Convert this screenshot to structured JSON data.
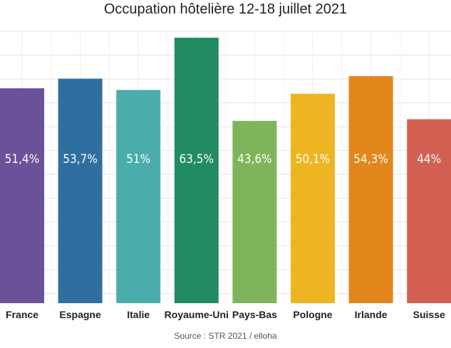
{
  "chart_data": {
    "type": "bar",
    "title": "Occupation hôtelière 12-18 juillet 2021",
    "source": "Source : STR 2021 / elloha",
    "categories": [
      "France",
      "Espagne",
      "Italie",
      "Royaume-Uni",
      "Pays-Bas",
      "Pologne",
      "Irlande",
      "Suisse"
    ],
    "values": [
      51.4,
      53.7,
      51,
      63.5,
      43.6,
      50.1,
      54.3,
      44
    ],
    "value_labels": [
      "51,4%",
      "53,7%",
      "51%",
      "63,5%",
      "43,6%",
      "50,1%",
      "54,3%",
      "44%"
    ],
    "colors": [
      "#6B5199",
      "#2F6FA0",
      "#4AADAB",
      "#238B62",
      "#7FB55A",
      "#EDB521",
      "#E3861B",
      "#D26052"
    ],
    "ylim": [
      0,
      65
    ],
    "grid": true,
    "legend": "none"
  }
}
